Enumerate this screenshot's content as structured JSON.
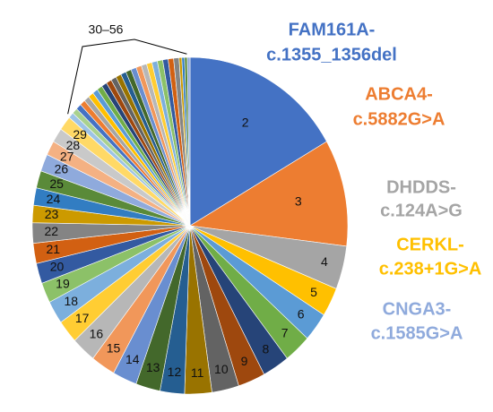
{
  "chart_data": {
    "type": "pie",
    "categories": [
      "2",
      "3",
      "4",
      "5",
      "6",
      "7",
      "8",
      "9",
      "10",
      "11",
      "12",
      "13",
      "14",
      "15",
      "16",
      "17",
      "18",
      "19",
      "20",
      "21",
      "22",
      "23",
      "24",
      "25",
      "26",
      "27",
      "28",
      "29",
      null,
      null,
      null,
      null,
      null,
      null,
      null,
      null,
      null,
      null,
      null,
      null,
      null,
      null,
      null,
      null,
      null,
      null,
      null,
      null,
      null,
      null,
      null,
      null,
      null,
      null,
      null
    ],
    "values": [
      60,
      37,
      15,
      10,
      10,
      10,
      10,
      10,
      10,
      10,
      9,
      9,
      9,
      9,
      9,
      8,
      8,
      7,
      7,
      7,
      7,
      6,
      6,
      6,
      6,
      5,
      5,
      5,
      2,
      2,
      2,
      2,
      2,
      2,
      2,
      2,
      2,
      2,
      2,
      2,
      2,
      2,
      2,
      2,
      2,
      2,
      2,
      2,
      2,
      2,
      2,
      1,
      1,
      1,
      1
    ],
    "colors": [
      "#4472c4",
      "#ed7d31",
      "#a5a5a5",
      "#ffc000",
      "#5b9bd5",
      "#70ad47",
      "#264478",
      "#9e480e",
      "#636363",
      "#997300",
      "#255e91",
      "#43682b",
      "#698ed0",
      "#f1975a",
      "#b7b7b7",
      "#ffcd33",
      "#7cafdd",
      "#8cc168",
      "#335aa1",
      "#d26012",
      "#848484",
      "#cc9a00",
      "#327dc2",
      "#5a8a39",
      "#8faadc",
      "#f4b183",
      "#c9c9c9",
      "#ffd966",
      "#9dc3e6",
      "#a9d18e"
    ],
    "annotation": "30–56",
    "callouts": [
      {
        "lines": [
          "FAM161A-",
          "c.1355_1356del"
        ],
        "color": "#4472c4"
      },
      {
        "lines": [
          "ABCA4-",
          "c.5882G>A"
        ],
        "color": "#ed7d31"
      },
      {
        "lines": [
          "DHDDS-",
          "c.124A>G"
        ],
        "color": "#a5a5a5"
      },
      {
        "lines": [
          "CERKL-",
          "c.238+1G>A"
        ],
        "color": "#ffc000"
      },
      {
        "lines": [
          "CNGA3-",
          "c.1585G>A"
        ],
        "color": "#8faadc"
      }
    ]
  }
}
